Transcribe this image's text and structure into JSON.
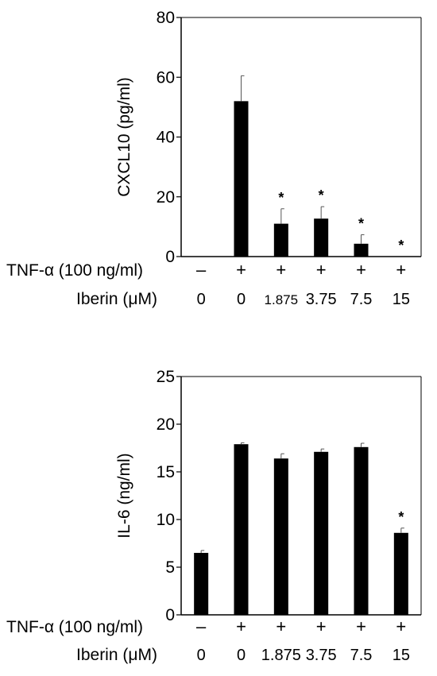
{
  "chart_data": [
    {
      "type": "bar",
      "title": "",
      "xlabel": "",
      "ylabel": "CXCL10 (pg/ml)",
      "ylim": [
        0,
        80
      ],
      "yticks": [
        "0",
        "20",
        "40",
        "60",
        "80"
      ],
      "ytick_values": [
        0,
        20,
        40,
        60,
        80
      ],
      "grid": false,
      "categories": [
        "1",
        "2",
        "3",
        "4",
        "5",
        "6"
      ],
      "row_labels": {
        "tnf": "TNF-α (100 ng/ml)",
        "iberin": "Iberin (μM)"
      },
      "tnf_values": [
        "–",
        "+",
        "+",
        "+",
        "+",
        "+"
      ],
      "iberin_values": [
        "0",
        "0",
        "1.875",
        "3.75",
        "7.5",
        "15"
      ],
      "values": [
        0,
        52,
        11,
        12.7,
        4.3,
        0
      ],
      "errors": [
        0,
        8.5,
        5,
        4,
        3,
        0
      ],
      "significance": [
        "",
        "",
        "*",
        "*",
        "*",
        "*"
      ],
      "bar_color": "#000000"
    },
    {
      "type": "bar",
      "title": "",
      "xlabel": "",
      "ylabel": "IL-6 (ng/ml)",
      "ylim": [
        0,
        25
      ],
      "yticks": [
        "0",
        "5",
        "10",
        "15",
        "20",
        "25"
      ],
      "ytick_values": [
        0,
        5,
        10,
        15,
        20,
        25
      ],
      "grid": false,
      "categories": [
        "1",
        "2",
        "3",
        "4",
        "5",
        "6"
      ],
      "row_labels": {
        "tnf": "TNF-α (100 ng/ml)",
        "iberin": "Iberin (μM)"
      },
      "tnf_values": [
        "–",
        "+",
        "+",
        "+",
        "+",
        "+"
      ],
      "iberin_values": [
        "0",
        "0",
        "1.875",
        "3.75",
        "7.5",
        "15"
      ],
      "values": [
        6.5,
        17.9,
        16.4,
        17.1,
        17.6,
        8.6
      ],
      "errors": [
        0.25,
        0.15,
        0.5,
        0.3,
        0.4,
        0.5
      ],
      "significance": [
        "",
        "",
        "",
        "",
        "",
        "*"
      ],
      "bar_color": "#000000"
    }
  ]
}
